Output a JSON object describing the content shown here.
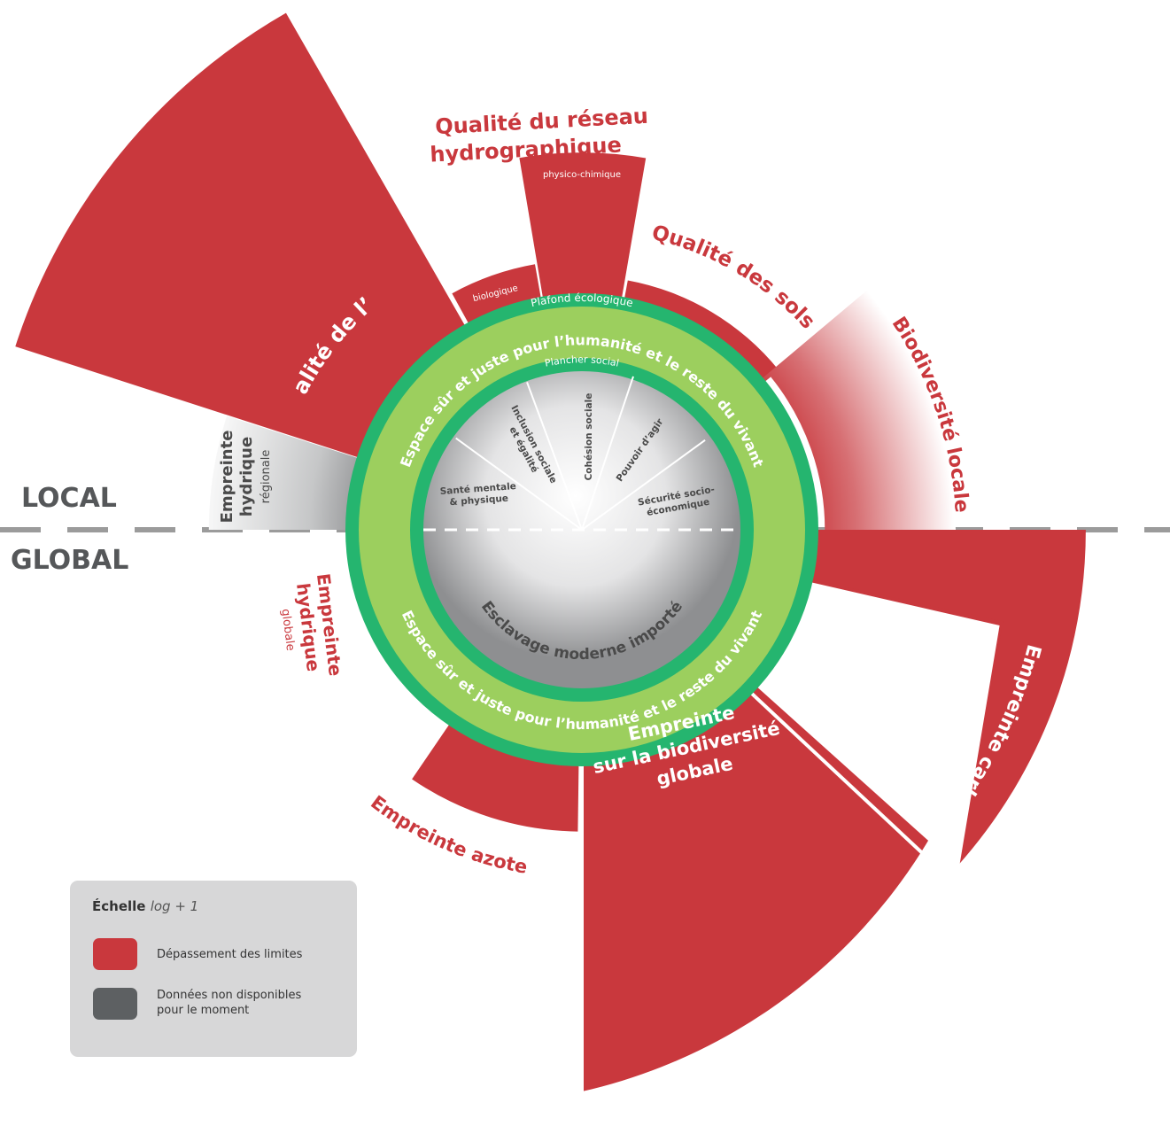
{
  "colors": {
    "overshoot": "#c9383d",
    "band": "#9ccf5e",
    "band_edge": "#25b56f",
    "unavailable": "#5d6062",
    "divider": "#999999"
  },
  "scope": {
    "local": "LOCAL",
    "global": "GLOBAL"
  },
  "ring": {
    "ceiling_label": "Plafond écologique",
    "floor_label": "Plancher social",
    "band_text_top": "Espace sûr et juste pour l’humanité et le reste du vivant",
    "band_text_bottom": "Espace sûr et juste pour l’humanité et le reste du vivant"
  },
  "social": {
    "sectors": [
      {
        "label": "Santé mentale\n& physique"
      },
      {
        "label": "Inclusion sociale\net égalité"
      },
      {
        "label": "Cohésion sociale"
      },
      {
        "label": "Pouvoir d’agir"
      },
      {
        "label": "Sécurité socio-\néconomique"
      }
    ],
    "global_label": "Esclavage moderne importé"
  },
  "ecological": {
    "air": {
      "label": "Qualité de l’air",
      "status": "overshoot"
    },
    "water_network": {
      "label_line1": "Qualité du réseau",
      "label_line2": "hydrographique",
      "sub_biologique": "biologique",
      "sub_physico": "physico-chimique",
      "status": "overshoot"
    },
    "soils": {
      "label": "Qualité des sols",
      "status": "overshoot"
    },
    "local_biodiversity": {
      "label": "Biodiversité locale",
      "status": "overshoot"
    },
    "regional_water": {
      "label_line1": "Empreinte",
      "label_line2": "hydrique",
      "label_line3": "régionale",
      "status": "unavailable"
    },
    "global_water": {
      "label_line1": "Empreinte",
      "label_line2": "hydrique",
      "label_line3": "globale",
      "status": "overshoot"
    },
    "nitrogen": {
      "label": "Empreinte azote",
      "status": "overshoot"
    },
    "global_biodiversity": {
      "label_line1": "Empreinte",
      "label_line2": "sur la biodiversité",
      "label_line3": "globale",
      "status": "overshoot"
    },
    "carbon": {
      "label": "Empreinte carbone",
      "status": "overshoot"
    }
  },
  "legend": {
    "title": "Échelle",
    "scale": "log + 1",
    "items": [
      {
        "label": "Dépassement des limites",
        "color": "#c9383d"
      },
      {
        "label": "Données non disponibles\npour le moment",
        "color": "#5d6062"
      }
    ]
  }
}
